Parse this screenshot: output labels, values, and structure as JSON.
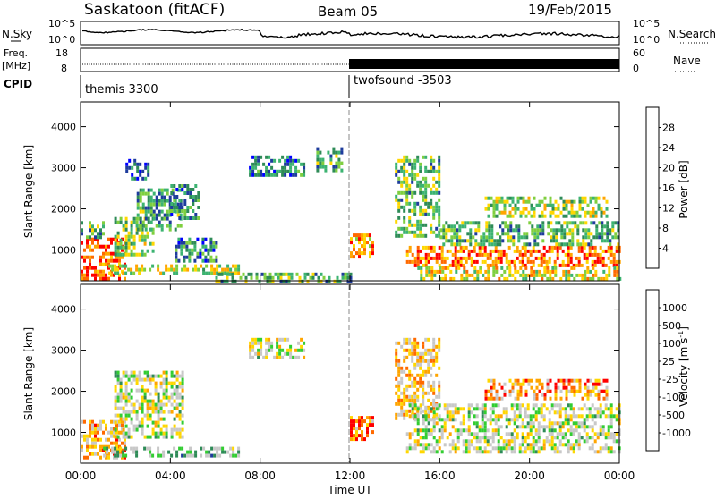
{
  "header": {
    "title": "Saskatoon (fitACF)",
    "beam": "Beam 05",
    "date": "19/Feb/2015"
  },
  "panels": {
    "nsky": {
      "left_label": "N.Sky",
      "right_label": "N.Search",
      "left_ticks": [
        "10^5",
        "10^0"
      ],
      "right_ticks": [
        "10^5",
        "10^0"
      ]
    },
    "freq": {
      "left_label_1": "Freq.",
      "left_label_2": "[MHz]",
      "right_label": "Nave",
      "left_ticks": [
        "18",
        "8"
      ],
      "right_ticks": [
        "60",
        "0"
      ]
    },
    "cpid": {
      "label": "CPID",
      "mode1": "themis 3300",
      "mode2": "twofsound -3503",
      "switch_hour": 12
    }
  },
  "colors": {
    "power_scale": [
      "#0000ff",
      "#1e3c9c",
      "#2e8b57",
      "#3cb371",
      "#7fcf3f",
      "#ffd700",
      "#ffa500",
      "#ff6a00",
      "#ff0000"
    ],
    "velocity_scale": [
      "#ff0000",
      "#ff6a00",
      "#ffa500",
      "#ffd700",
      "#c8c8c8",
      "#c8c8c8",
      "#32cd32",
      "#2e8b57",
      "#1e3c9c",
      "#0000ff"
    ]
  },
  "chart_data": [
    {
      "type": "heatmap",
      "name": "power",
      "ylabel": "Slant Range [km]",
      "yticks": [
        1000,
        2000,
        3000,
        4000
      ],
      "ylim": [
        250,
        4600
      ],
      "xlim": [
        0,
        24
      ],
      "colorbar_label": "Power [dB]",
      "colorbar_ticks": [
        "28",
        "24",
        "20",
        "16",
        "12",
        "8",
        "4"
      ],
      "colorbar_range": [
        0,
        32
      ],
      "regions": [
        {
          "x0": 0.0,
          "x1": 2.0,
          "y0": 300,
          "y1": 1300,
          "level": 0.85
        },
        {
          "x0": 0.0,
          "x1": 1.0,
          "y0": 1300,
          "y1": 1700,
          "level": 0.4
        },
        {
          "x0": 1.5,
          "x1": 3.2,
          "y0": 900,
          "y1": 1800,
          "level": 0.45
        },
        {
          "x0": 2.5,
          "x1": 4.5,
          "y0": 1500,
          "y1": 2500,
          "level": 0.35
        },
        {
          "x0": 4.0,
          "x1": 5.2,
          "y0": 1800,
          "y1": 2600,
          "level": 0.3
        },
        {
          "x0": 4.2,
          "x1": 6.0,
          "y0": 700,
          "y1": 1300,
          "level": 0.3
        },
        {
          "x0": 1.0,
          "x1": 7.0,
          "y0": 400,
          "y1": 650,
          "level": 0.55
        },
        {
          "x0": 6.0,
          "x1": 12.0,
          "y0": 250,
          "y1": 450,
          "level": 0.4
        },
        {
          "x0": 2.0,
          "x1": 3.0,
          "y0": 2700,
          "y1": 3300,
          "level": 0.2
        },
        {
          "x0": 7.5,
          "x1": 10.0,
          "y0": 2800,
          "y1": 3300,
          "level": 0.25
        },
        {
          "x0": 10.5,
          "x1": 11.6,
          "y0": 2900,
          "y1": 3500,
          "level": 0.35
        },
        {
          "x0": 12.0,
          "x1": 13.0,
          "y0": 800,
          "y1": 1400,
          "level": 0.7
        },
        {
          "x0": 14.0,
          "x1": 16.0,
          "y0": 1300,
          "y1": 3300,
          "level": 0.4
        },
        {
          "x0": 14.5,
          "x1": 24.0,
          "y0": 600,
          "y1": 1100,
          "level": 0.8
        },
        {
          "x0": 16.0,
          "x1": 24.0,
          "y0": 1100,
          "y1": 1700,
          "level": 0.4
        },
        {
          "x0": 18.0,
          "x1": 23.5,
          "y0": 1800,
          "y1": 2300,
          "level": 0.5
        },
        {
          "x0": 15.0,
          "x1": 24.0,
          "y0": 300,
          "y1": 600,
          "level": 0.6
        }
      ]
    },
    {
      "type": "heatmap",
      "name": "velocity",
      "ylabel": "Slant Range [km]",
      "yticks": [
        1000,
        2000,
        3000,
        4000
      ],
      "ylim": [
        250,
        4600
      ],
      "xlim": [
        0,
        24
      ],
      "colorbar_label": "Velocity [m s",
      "colorbar_unit_exp": "-1",
      "colorbar_ticks": [
        "1000",
        "500",
        "100",
        "25",
        "-25",
        "-100",
        "-500",
        "-1000"
      ],
      "regions": [
        {
          "x0": 0.0,
          "x1": 2.0,
          "y0": 400,
          "y1": 1300,
          "level": 0.3
        },
        {
          "x0": 1.5,
          "x1": 4.5,
          "y0": 900,
          "y1": 2500,
          "level": 0.5
        },
        {
          "x0": 1.0,
          "x1": 7.0,
          "y0": 400,
          "y1": 650,
          "level": 0.6
        },
        {
          "x0": 7.5,
          "x1": 10.0,
          "y0": 2800,
          "y1": 3300,
          "level": 0.5
        },
        {
          "x0": 12.0,
          "x1": 13.0,
          "y0": 800,
          "y1": 1400,
          "level": 0.2
        },
        {
          "x0": 14.0,
          "x1": 16.0,
          "y0": 1300,
          "y1": 3300,
          "level": 0.35
        },
        {
          "x0": 14.5,
          "x1": 24.0,
          "y0": 500,
          "y1": 1700,
          "level": 0.5
        },
        {
          "x0": 18.0,
          "x1": 23.5,
          "y0": 1800,
          "y1": 2300,
          "level": 0.25
        }
      ]
    }
  ],
  "xaxis": {
    "ticks": [
      "00:00",
      "04:00",
      "08:00",
      "12:00",
      "16:00",
      "20:00",
      "00:00"
    ],
    "label": "Time UT"
  }
}
